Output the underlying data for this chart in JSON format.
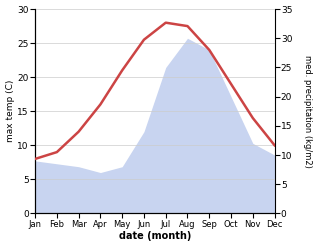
{
  "months": [
    "Jan",
    "Feb",
    "Mar",
    "Apr",
    "May",
    "Jun",
    "Jul",
    "Aug",
    "Sep",
    "Oct",
    "Nov",
    "Dec"
  ],
  "month_indices": [
    0,
    1,
    2,
    3,
    4,
    5,
    6,
    7,
    8,
    9,
    10,
    11
  ],
  "temperature": [
    8.0,
    9.0,
    12.0,
    16.0,
    21.0,
    25.5,
    28.0,
    27.5,
    24.0,
    19.0,
    14.0,
    10.0
  ],
  "precipitation": [
    9.0,
    8.5,
    8.0,
    7.0,
    8.0,
    14.0,
    25.0,
    30.0,
    28.0,
    20.0,
    12.0,
    10.0
  ],
  "temp_color": "#cc4444",
  "precip_fill_color": "#c8d4f0",
  "temp_ylim": [
    0,
    30
  ],
  "precip_ylim": [
    0,
    35
  ],
  "temp_yticks": [
    0,
    5,
    10,
    15,
    20,
    25,
    30
  ],
  "precip_yticks": [
    0,
    5,
    10,
    15,
    20,
    25,
    30,
    35
  ],
  "ylabel_left": "max temp (C)",
  "ylabel_right": "med. precipitation (kg/m2)",
  "xlabel": "date (month)",
  "background_color": "#ffffff",
  "figsize": [
    3.18,
    2.47
  ],
  "dpi": 100
}
